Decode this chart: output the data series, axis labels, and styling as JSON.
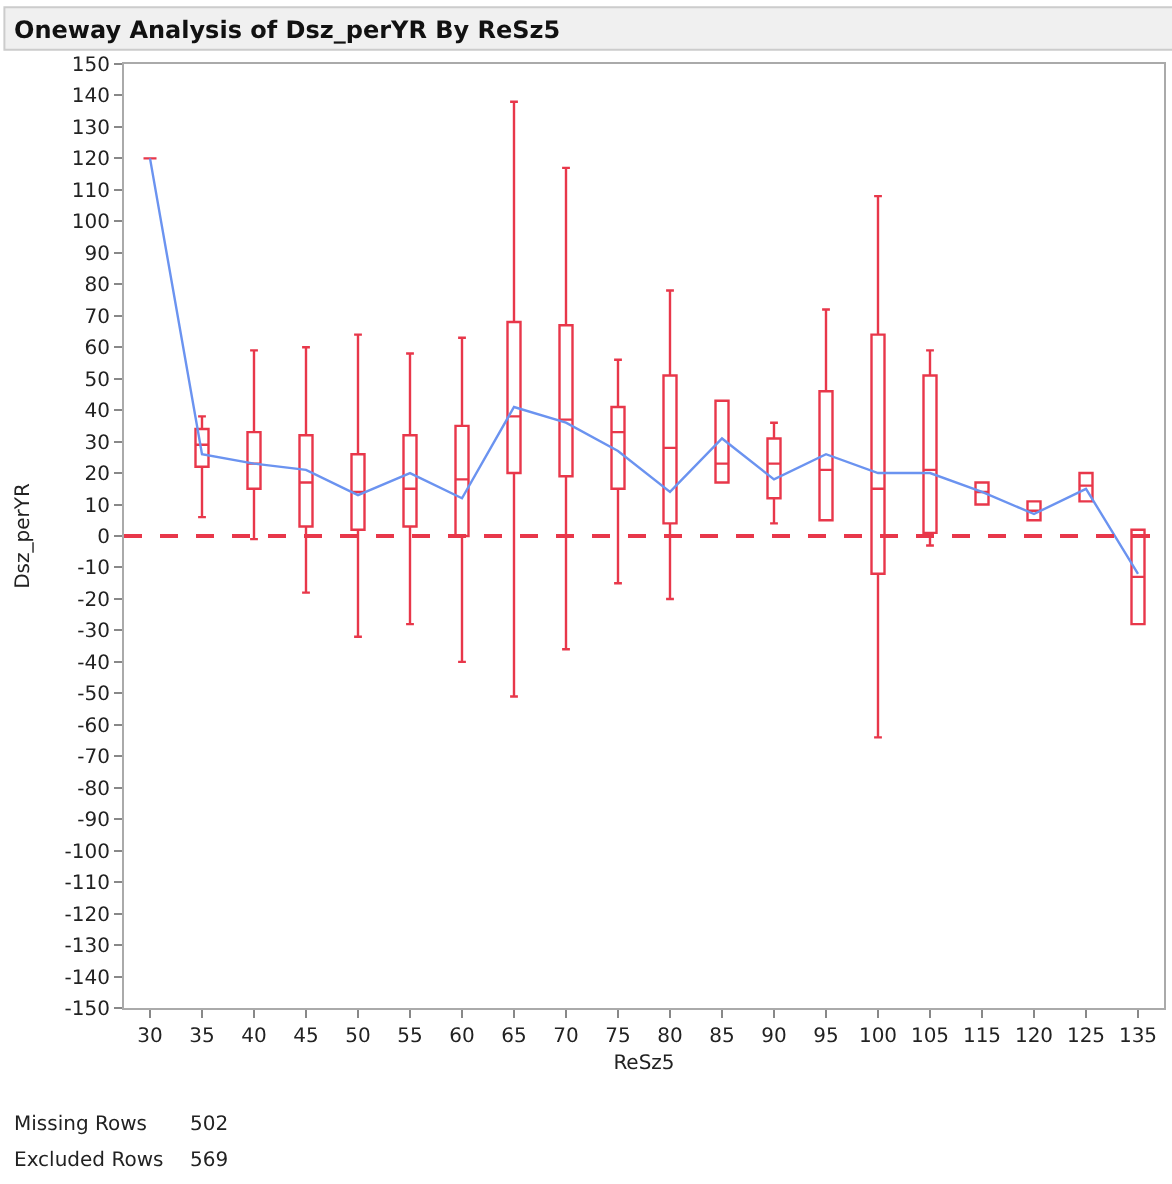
{
  "chart_data": {
    "type": "box",
    "title": "Oneway Analysis of Dsz_perYR By ReSz5",
    "xlabel": "ReSz5",
    "ylabel": "Dsz_perYR",
    "categories": [
      "30",
      "35",
      "40",
      "45",
      "50",
      "55",
      "60",
      "65",
      "70",
      "75",
      "80",
      "85",
      "90",
      "95",
      "100",
      "105",
      "115",
      "120",
      "125",
      "135"
    ],
    "color": "#e8374a",
    "boxes": [
      {
        "low": 120,
        "q1": 120,
        "median": 120,
        "q3": 120,
        "high": 120
      },
      {
        "low": 6,
        "q1": 22,
        "median": 29,
        "q3": 34,
        "high": 38
      },
      {
        "low": -1,
        "q1": 15,
        "median": 23,
        "q3": 33,
        "high": 59
      },
      {
        "low": -18,
        "q1": 3,
        "median": 17,
        "q3": 32,
        "high": 60
      },
      {
        "low": -32,
        "q1": 2,
        "median": 14,
        "q3": 26,
        "high": 64
      },
      {
        "low": -28,
        "q1": 3,
        "median": 15,
        "q3": 32,
        "high": 58
      },
      {
        "low": -40,
        "q1": 0,
        "median": 18,
        "q3": 35,
        "high": 63
      },
      {
        "low": -51,
        "q1": 20,
        "median": 38,
        "q3": 68,
        "high": 138
      },
      {
        "low": -36,
        "q1": 19,
        "median": 37,
        "q3": 67,
        "high": 117
      },
      {
        "low": -15,
        "q1": 15,
        "median": 33,
        "q3": 41,
        "high": 56
      },
      {
        "low": -20,
        "q1": 4,
        "median": 28,
        "q3": 51,
        "high": 78
      },
      {
        "low": 17,
        "q1": 17,
        "median": 23,
        "q3": 43,
        "high": 43
      },
      {
        "low": 4,
        "q1": 12,
        "median": 23,
        "q3": 31,
        "high": 36
      },
      {
        "low": 5,
        "q1": 5,
        "median": 21,
        "q3": 46,
        "high": 72
      },
      {
        "low": -64,
        "q1": -12,
        "median": 15,
        "q3": 64,
        "high": 108
      },
      {
        "low": -3,
        "q1": 1,
        "median": 21,
        "q3": 51,
        "high": 59
      },
      {
        "low": 10,
        "q1": 10,
        "median": 14,
        "q3": 17,
        "high": 17
      },
      {
        "low": 5,
        "q1": 5,
        "median": 8,
        "q3": 11,
        "high": 11
      },
      {
        "low": 11,
        "q1": 11,
        "median": 16,
        "q3": 20,
        "high": 20
      },
      {
        "low": -28,
        "q1": -28,
        "median": -13,
        "q3": 2,
        "high": 2
      }
    ],
    "series": [
      {
        "type": "line",
        "color": "#6b93f0",
        "values": [
          120,
          26,
          23,
          21,
          13,
          20,
          12,
          41,
          36,
          27,
          14,
          31,
          18,
          26,
          20,
          20,
          14,
          7,
          15,
          -12
        ]
      }
    ],
    "ylim": [
      -150,
      150
    ],
    "yticks": [
      -150,
      -140,
      -130,
      -120,
      -110,
      -100,
      -90,
      -80,
      -70,
      -60,
      -50,
      -40,
      -30,
      -20,
      -10,
      0,
      10,
      20,
      30,
      40,
      50,
      60,
      70,
      80,
      90,
      100,
      110,
      120,
      130,
      140,
      150
    ],
    "ref_lines": [
      {
        "axis": "y",
        "value": 0,
        "color": "#e8374a",
        "line_style": "dashed"
      }
    ],
    "annotations": [
      "Missing Rows",
      "502",
      "Excluded Rows",
      "569"
    ],
    "grid": false,
    "marker": "none",
    "line_style": "solid"
  }
}
